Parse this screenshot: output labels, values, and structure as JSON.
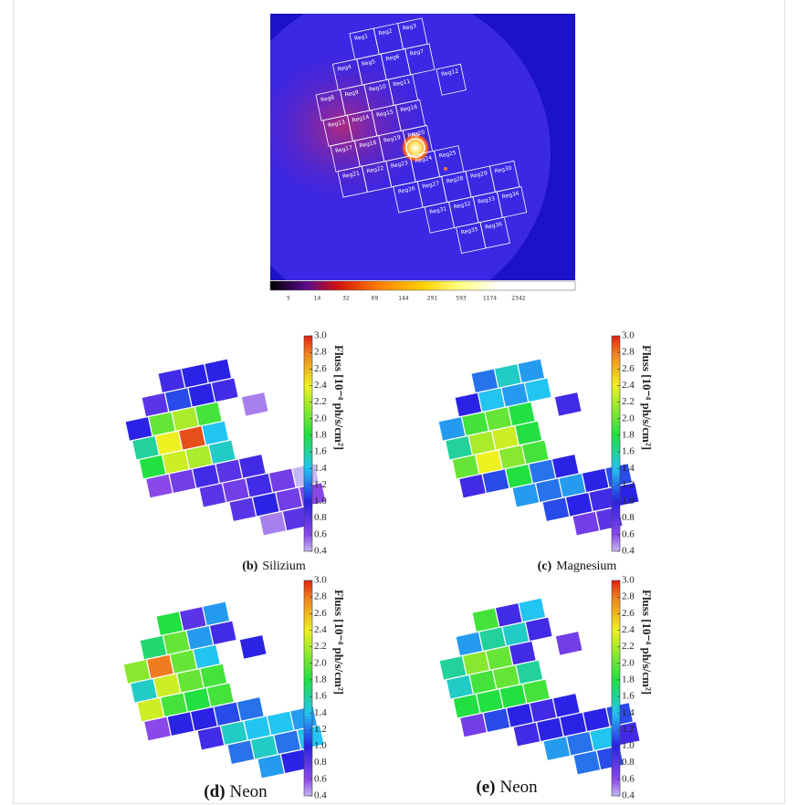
{
  "figure": {
    "image": {
      "regions": [
        "Reg1",
        "Reg2",
        "Reg3",
        "Reg4",
        "Reg5",
        "Reg6",
        "Reg7",
        "Reg8",
        "Reg9",
        "Reg10",
        "Reg11",
        "Reg12",
        "Reg13",
        "Reg14",
        "Reg15",
        "Reg16",
        "Reg17",
        "Reg18",
        "Reg19",
        "Reg20",
        "Reg21",
        "Reg22",
        "Reg23",
        "Reg24",
        "Reg25",
        "Reg26",
        "Reg27",
        "Reg28",
        "Reg29",
        "Reg30",
        "Reg31",
        "Reg32",
        "Reg33",
        "Reg34",
        "Reg35",
        "Reg36"
      ],
      "source": "NS",
      "colorbar_ticks": [
        5,
        14,
        32,
        69,
        144,
        291,
        593,
        1174,
        2342
      ]
    },
    "colorbar": {
      "label": "Fluss [10⁻⁴ ph/s/cm²]",
      "ticks": [
        0.4,
        0.6,
        0.8,
        {
          "value": 1,
          "label": "1.0"
        },
        1.2,
        1.4,
        1.6,
        1.8,
        {
          "value": 2,
          "label": "2.0"
        },
        2.2,
        2.4,
        2.6,
        2.8,
        {
          "value": 3,
          "label": "3.0"
        }
      ]
    },
    "panels": [
      {
        "label": "(b)",
        "name": "Silizium",
        "values": [
          0.9,
          1.0,
          1.0,
          0.8,
          1.1,
          1.0,
          0.9,
          1.0,
          2.0,
          2.2,
          1.9,
          0.5,
          1.6,
          2.4,
          2.9,
          1.4,
          1.8,
          2.3,
          2.2,
          1.5,
          0.6,
          0.7,
          0.9,
          0.8,
          0.9,
          0.8,
          0.7,
          0.9,
          0.7,
          0.4,
          0.8,
          1.0,
          0.7,
          0.6,
          0.5,
          0.8
        ]
      },
      {
        "label": "(c)",
        "name": "Magnesium",
        "values": [
          1.2,
          1.5,
          1.3,
          1.0,
          1.4,
          1.3,
          1.4,
          1.3,
          1.9,
          2.0,
          1.8,
          0.9,
          1.6,
          2.2,
          2.3,
          1.8,
          2.0,
          2.4,
          2.1,
          1.9,
          0.9,
          1.1,
          1.8,
          1.2,
          1.0,
          1.3,
          1.2,
          1.3,
          1.0,
          1.1,
          1.1,
          1.0,
          0.9,
          1.0,
          0.7,
          0.8
        ]
      },
      {
        "label": "(d)",
        "name": "Neon",
        "values": [
          1.8,
          0.8,
          1.3,
          1.7,
          2.0,
          1.3,
          0.9,
          2.1,
          2.8,
          2.0,
          1.4,
          1.0,
          1.5,
          2.3,
          2.0,
          1.9,
          2.3,
          1.9,
          1.8,
          1.9,
          0.6,
          1.0,
          1.0,
          1.1,
          1.2,
          0.9,
          1.5,
          1.4,
          1.4,
          1.3,
          1.2,
          1.5,
          1.2,
          1.4,
          1.3,
          1.0
        ]
      },
      {
        "label": "(e)",
        "name": "Neon",
        "values": [
          1.9,
          0.9,
          1.4,
          1.3,
          1.6,
          1.5,
          0.9,
          1.6,
          2.1,
          2.0,
          0.9,
          0.7,
          1.5,
          1.9,
          2.0,
          1.6,
          1.8,
          1.8,
          1.8,
          1.9,
          0.7,
          1.1,
          1.0,
          0.9,
          1.0,
          0.9,
          1.0,
          1.0,
          1.0,
          1.1,
          1.3,
          1.2,
          1.4,
          0.9,
          1.2,
          1.1
        ]
      }
    ]
  }
}
